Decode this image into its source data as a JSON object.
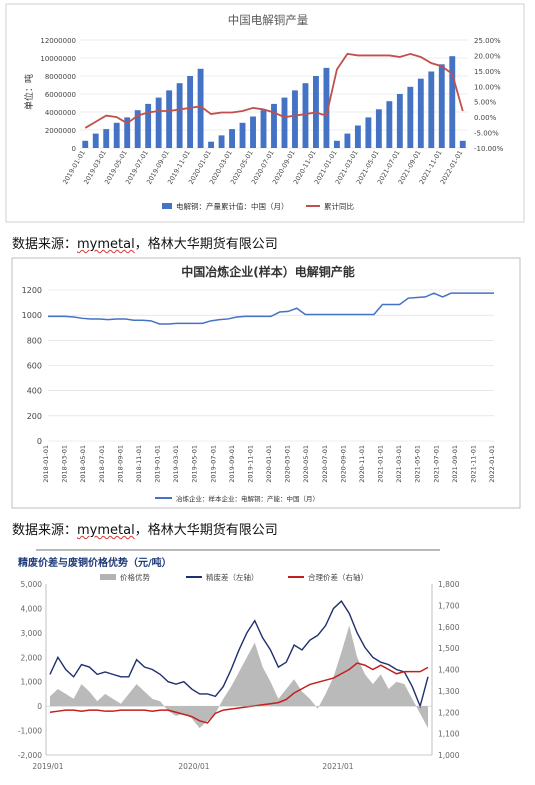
{
  "source_caption": {
    "prefix": "数据来源：",
    "underlined": "mymetal",
    "suffix": "，格林大华期货有限公司"
  },
  "chart_data": [
    {
      "type": "bar",
      "title": "中国电解铜产量",
      "ylabel": "单位：吨",
      "ylim": [
        0,
        12000000
      ],
      "y_ticks": [
        "0",
        "2000000",
        "4000000",
        "6000000",
        "8000000",
        "10000000",
        "12000000"
      ],
      "y2lim": [
        -10,
        25
      ],
      "y2_ticks": [
        "25.00%",
        "20.00%",
        "15.00%",
        "10.00%",
        "5.00%",
        "0.00%",
        "-5.00%",
        "-10.00%"
      ],
      "x_tick_labels": [
        "2019-01-01",
        "2019-03-01",
        "2019-05-01",
        "2019-07-01",
        "2019-09-01",
        "2019-11-01",
        "2020-01-01",
        "2020-03-01",
        "2020-05-01",
        "2020-07-01",
        "2020-09-01",
        "2020-11-01",
        "2021-01-01",
        "2021-03-01",
        "2021-05-01",
        "2021-07-01",
        "2021-09-01",
        "2021-11-01",
        "2022-01-01"
      ],
      "grid": true,
      "legend_position": "bottom",
      "series": [
        {
          "name": "电解铜：产量累计值：中国（月）",
          "color": "#4472c4",
          "axis": "left",
          "values": [
            800000,
            1600000,
            2100000,
            2800000,
            3400000,
            4200000,
            4900000,
            5600000,
            6400000,
            7200000,
            8000000,
            8800000,
            700000,
            1400000,
            2100000,
            2800000,
            3500000,
            4200000,
            4900000,
            5600000,
            6400000,
            7200000,
            8000000,
            8900000,
            800000,
            1600000,
            2500000,
            3400000,
            4300000,
            5200000,
            6000000,
            6800000,
            7700000,
            8500000,
            9300000,
            10200000,
            800000
          ]
        },
        {
          "name": "累计同比",
          "color": "#c0504d",
          "axis": "right",
          "values": [
            -3.5,
            -1.5,
            0.5,
            0.0,
            -2.0,
            0.5,
            1.5,
            2.0,
            2.0,
            2.5,
            3.0,
            3.5,
            1.0,
            1.5,
            1.5,
            2.0,
            3.0,
            2.5,
            1.5,
            0.0,
            0.5,
            1.0,
            1.5,
            0.5,
            15.5,
            20.5,
            20.0,
            20.0,
            20.0,
            20.0,
            19.5,
            20.5,
            19.5,
            17.5,
            16.5,
            14.0,
            2.0
          ]
        }
      ]
    },
    {
      "type": "line",
      "title": "中国冶炼企业(样本）电解铜产能",
      "ylim": [
        0,
        1200
      ],
      "y_ticks": [
        "0",
        "200",
        "400",
        "600",
        "800",
        "1000",
        "1200"
      ],
      "x_tick_labels": [
        "2018-01-01",
        "2018-03-01",
        "2018-05-01",
        "2018-07-01",
        "2018-09-01",
        "2018-11-01",
        "2019-01-01",
        "2019-03-01",
        "2019-05-01",
        "2019-07-01",
        "2019-09-01",
        "2019-11-01",
        "2020-01-01",
        "2020-03-01",
        "2020-05-01",
        "2020-07-01",
        "2020-09-01",
        "2020-11-01",
        "2021-01-01",
        "2021-03-01",
        "2021-05-01",
        "2021-07-01",
        "2021-09-01",
        "2021-11-01",
        "2022-01-01"
      ],
      "grid": true,
      "legend_position": "bottom",
      "series": [
        {
          "name": "冶炼企业：样本企业：电解铜：产能：中国（月）",
          "color": "#4472c4",
          "values": [
            990,
            990,
            990,
            985,
            975,
            970,
            970,
            965,
            970,
            970,
            960,
            960,
            955,
            930,
            930,
            935,
            935,
            935,
            935,
            955,
            965,
            970,
            985,
            990,
            990,
            990,
            990,
            1025,
            1030,
            1055,
            1005,
            1005,
            1005,
            1005,
            1005,
            1005,
            1005,
            1005,
            1005,
            1085,
            1085,
            1085,
            1135,
            1140,
            1145,
            1175,
            1145,
            1175,
            1175,
            1175,
            1175,
            1175,
            1175
          ]
        }
      ]
    },
    {
      "type": "area",
      "title": "精废价差与废铜价格优势（元/吨）",
      "ylim": [
        -2000,
        5000
      ],
      "y_ticks": [
        "5,000",
        "4,000",
        "3,000",
        "2,000",
        "1,000",
        "0",
        "-1,000",
        "-2,000"
      ],
      "y2lim": [
        1000,
        1800
      ],
      "y2_ticks": [
        "1,800",
        "1,700",
        "1,600",
        "1,500",
        "1,400",
        "1,300",
        "1,200",
        "1,100",
        "1,000"
      ],
      "x_tick_labels": [
        "2019/01",
        "2020/01",
        "2021/01"
      ],
      "legend_position": "top",
      "series": [
        {
          "name": "价格优势",
          "color": "#b3b3b3",
          "axis": "left",
          "values": [
            400,
            700,
            500,
            300,
            900,
            600,
            200,
            500,
            300,
            100,
            500,
            900,
            600,
            300,
            200,
            -200,
            -400,
            -300,
            -500,
            -900,
            -600,
            -300,
            300,
            800,
            1400,
            2000,
            2600,
            1600,
            1000,
            300,
            700,
            1100,
            600,
            300,
            -100,
            500,
            1200,
            2200,
            3300,
            2000,
            1300,
            900,
            1300,
            700,
            1000,
            900,
            300,
            -300,
            -900
          ]
        },
        {
          "name": "精废差（左轴）",
          "color": "#1f2f6e",
          "axis": "left",
          "values": [
            1300,
            2000,
            1500,
            1200,
            1700,
            1600,
            1300,
            1400,
            1300,
            1200,
            1200,
            1900,
            1600,
            1500,
            1300,
            1000,
            900,
            1000,
            700,
            500,
            500,
            400,
            800,
            1500,
            2300,
            3000,
            3500,
            2800,
            2300,
            1600,
            1800,
            2500,
            2300,
            2700,
            2900,
            3300,
            4000,
            4300,
            3800,
            3000,
            2400,
            2000,
            1800,
            1700,
            1500,
            1400,
            800,
            0,
            1200
          ]
        },
        {
          "name": "合理价差（右轴）",
          "color": "#c41e1e",
          "axis": "right",
          "values": [
            1200,
            1205,
            1210,
            1210,
            1205,
            1210,
            1210,
            1205,
            1205,
            1210,
            1210,
            1210,
            1210,
            1205,
            1210,
            1210,
            1200,
            1190,
            1180,
            1160,
            1150,
            1195,
            1210,
            1215,
            1220,
            1225,
            1230,
            1235,
            1240,
            1245,
            1260,
            1290,
            1310,
            1330,
            1340,
            1350,
            1360,
            1380,
            1400,
            1430,
            1420,
            1400,
            1420,
            1400,
            1380,
            1390,
            1390,
            1390,
            1410
          ]
        }
      ]
    }
  ]
}
